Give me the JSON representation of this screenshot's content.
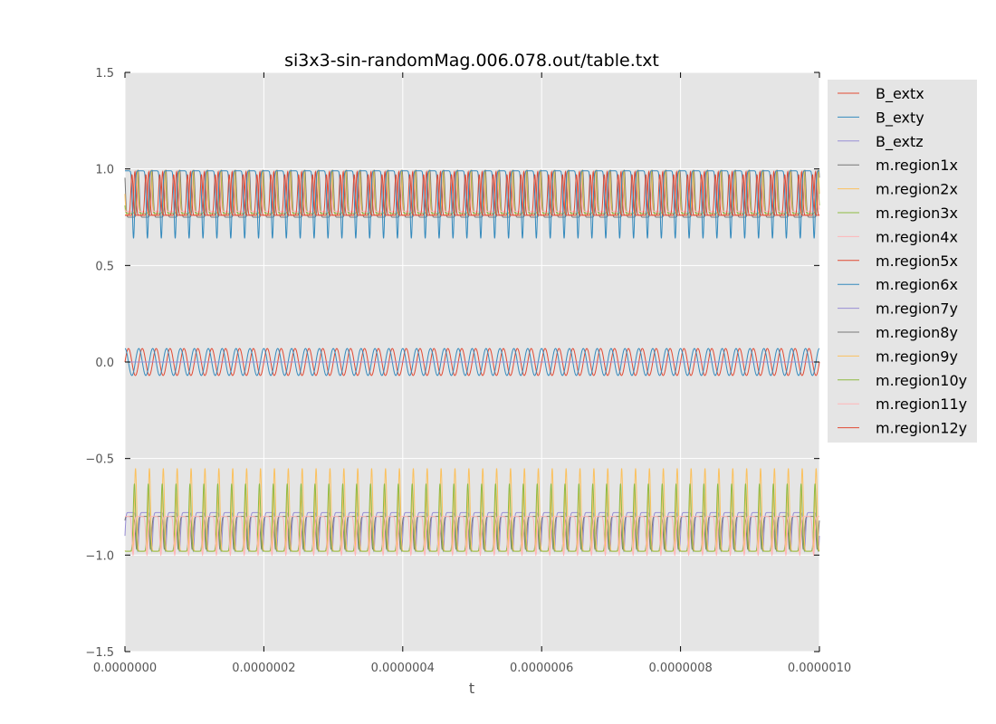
{
  "chart_data": {
    "type": "line",
    "title": "si3x3-sin-randomMag.006.078.out/table.txt",
    "xlabel": "t",
    "ylabel": "",
    "xlim": [
      0,
      1e-06
    ],
    "ylim": [
      -1.5,
      1.5
    ],
    "x_ticks": [
      0,
      2e-07,
      4e-07,
      6e-07,
      8e-07,
      1e-06
    ],
    "x_tick_labels": [
      "0.0000000",
      "0.0000002",
      "0.0000004",
      "0.0000006",
      "0.0000008",
      "0.0000010"
    ],
    "y_ticks": [
      -1.5,
      -1.0,
      -0.5,
      0.0,
      0.5,
      1.0,
      1.5
    ],
    "y_tick_labels": [
      "−1.5",
      "−1.0",
      "−0.5",
      "0.0",
      "0.5",
      "1.0",
      "1.5"
    ],
    "grid": true,
    "legend_position": "outside-right",
    "background": "#e5e5e5",
    "cycles": 50,
    "series": [
      {
        "name": "B_extx",
        "color": "#e24a33",
        "shape": "sin",
        "center": 0.0,
        "amp": 0.07,
        "phase": 0.0
      },
      {
        "name": "B_exty",
        "color": "#348abd",
        "shape": "sin",
        "center": 0.0,
        "amp": 0.07,
        "phase": 1.5708
      },
      {
        "name": "B_extz",
        "color": "#988ed5",
        "shape": "sin",
        "center": 0.0,
        "amp": 0.0,
        "phase": 0.0
      },
      {
        "name": "m.region1x",
        "color": "#777777",
        "shape": "peak",
        "base": 0.75,
        "top": 0.995,
        "phase": 0.3
      },
      {
        "name": "m.region2x",
        "color": "#fbc15e",
        "shape": "peak",
        "base": 0.76,
        "top": 0.99,
        "phase": 0.6
      },
      {
        "name": "m.region3x",
        "color": "#8eba42",
        "shape": "peak",
        "base": 0.77,
        "top": 0.99,
        "phase": 0.9
      },
      {
        "name": "m.region4x",
        "color": "#ffb5b8",
        "shape": "peak",
        "base": 0.78,
        "top": 0.99,
        "phase": 1.2
      },
      {
        "name": "m.region5x",
        "color": "#e24a33",
        "shape": "peak",
        "base": 0.76,
        "top": 0.985,
        "phase": 1.8
      },
      {
        "name": "m.region6x",
        "color": "#348abd",
        "shape": "dip",
        "base": 0.64,
        "top": 0.99,
        "phase": 2.4
      },
      {
        "name": "m.region7y",
        "color": "#988ed5",
        "shape": "dip",
        "base": -0.98,
        "top": -0.78,
        "phase": 0.5
      },
      {
        "name": "m.region8y",
        "color": "#777777",
        "shape": "dip",
        "base": -0.97,
        "top": -0.8,
        "phase": 1.0
      },
      {
        "name": "m.region9y",
        "color": "#fbc15e",
        "shape": "peak",
        "base": -0.98,
        "top": -0.55,
        "phase": 1.5
      },
      {
        "name": "m.region10y",
        "color": "#8eba42",
        "shape": "peak",
        "base": -0.98,
        "top": -0.63,
        "phase": 2.0
      },
      {
        "name": "m.region11y",
        "color": "#ffb5b8",
        "shape": "dip",
        "base": -1.0,
        "top": -0.8,
        "phase": 2.6
      },
      {
        "name": "m.region12y",
        "color": "#e24a33",
        "shape": "peak",
        "base": 0.76,
        "top": 0.97,
        "phase": 3.1
      }
    ]
  }
}
